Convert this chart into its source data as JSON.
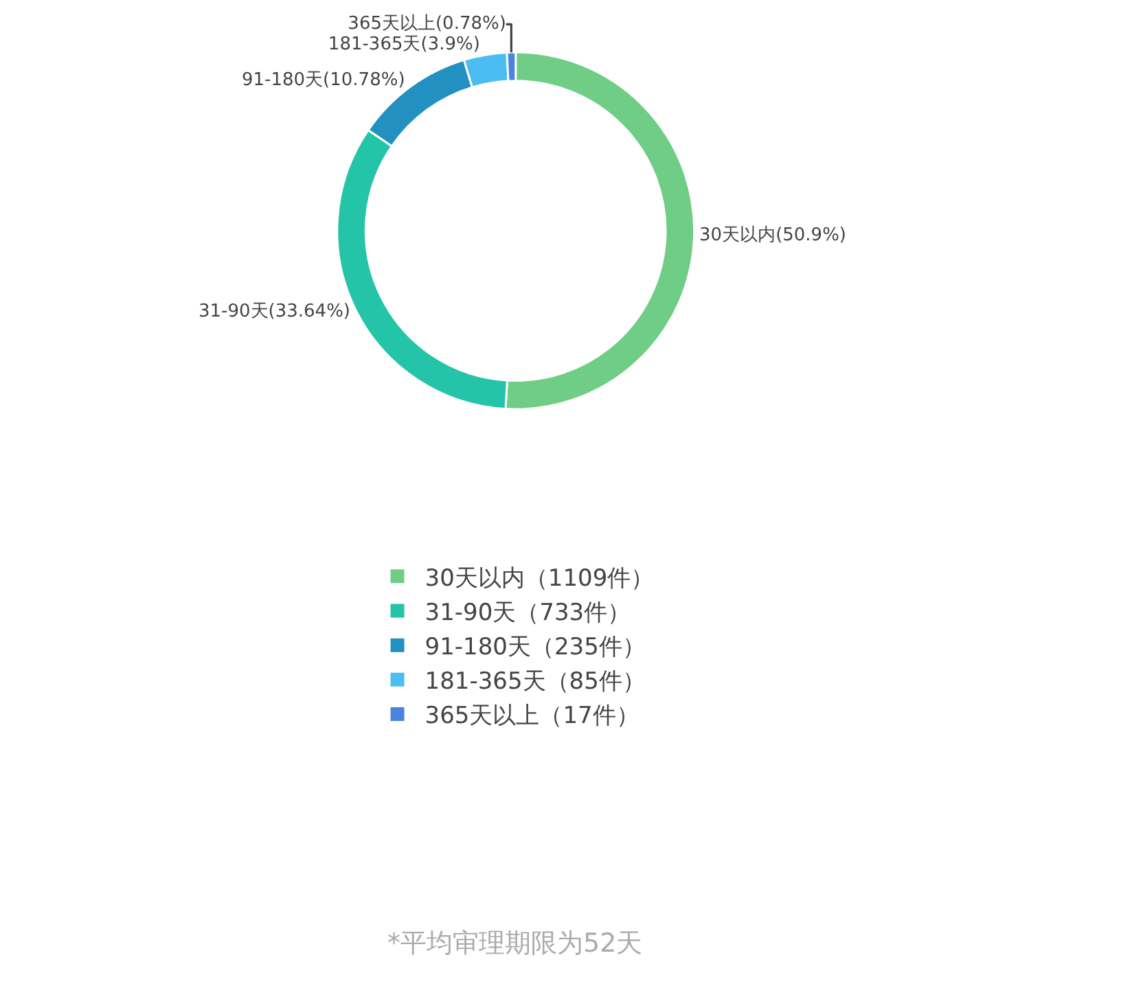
{
  "chart_data": {
    "type": "donut",
    "categories": [
      "30天以内（1109件）",
      "31-90天（733件）",
      "91-180天（235件）",
      "181-365天（85件）",
      "365天以上（17件）"
    ],
    "values": [
      50.9,
      33.64,
      10.78,
      3.9,
      0.78
    ],
    "value_labels": [
      "30天以内(50.9%)",
      "31-90天(33.64%)",
      "91-180天(10.78%)",
      "181-365天(3.9%)",
      "365天以上(0.78%)"
    ],
    "colors": [
      "#70cd86",
      "#24c4a8",
      "#2390c2",
      "#4bbdf3",
      "#4a83e0"
    ],
    "legend": "bottom",
    "annotations": [
      "*平均审理期限为52天"
    ]
  }
}
